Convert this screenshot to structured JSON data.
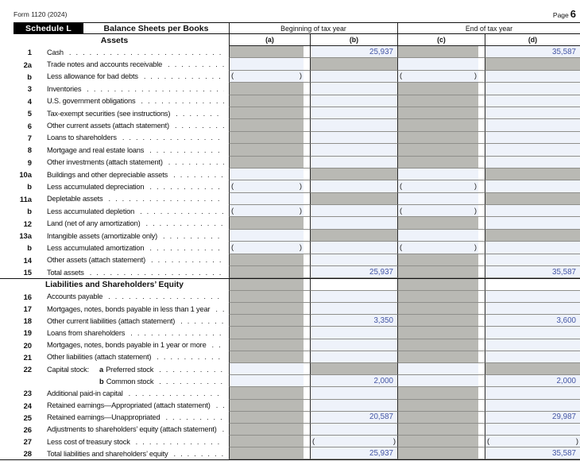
{
  "page": {
    "form_id": "Form 1120 (2024)",
    "page_label": "Page",
    "page_number": "6"
  },
  "header": {
    "schedule_badge": "Schedule L",
    "title": "Balance Sheets per Books",
    "group_beginning": "Beginning of tax year",
    "group_end": "End of tax year",
    "columns": [
      "(a)",
      "(b)",
      "(c)",
      "(d)"
    ]
  },
  "glyphs": {
    "paren_open": "(",
    "paren_close": ")",
    "leader_dot": "."
  },
  "sections": [
    {
      "title": "Assets",
      "rows": [
        {
          "num": "1",
          "label": "Cash",
          "a": "s",
          "b": "e",
          "c": "s",
          "d": "e",
          "vb": "25,937",
          "vd": "35,587"
        },
        {
          "num": "2a",
          "label": "Trade notes and accounts receivable",
          "a": "e",
          "b": "s",
          "c": "e",
          "d": "s"
        },
        {
          "num": "b",
          "label": "Less allowance for bad debts",
          "a": "p",
          "b": "e",
          "c": "p",
          "d": "e"
        },
        {
          "num": "3",
          "label": "Inventories",
          "a": "s",
          "b": "e",
          "c": "s",
          "d": "e"
        },
        {
          "num": "4",
          "label": "U.S. government obligations",
          "a": "s",
          "b": "e",
          "c": "s",
          "d": "e"
        },
        {
          "num": "5",
          "label": "Tax-exempt securities (see instructions)",
          "a": "s",
          "b": "e",
          "c": "s",
          "d": "e"
        },
        {
          "num": "6",
          "label": "Other current assets (attach statement)",
          "a": "s",
          "b": "e",
          "c": "s",
          "d": "e"
        },
        {
          "num": "7",
          "label": "Loans to shareholders",
          "a": "s",
          "b": "e",
          "c": "s",
          "d": "e"
        },
        {
          "num": "8",
          "label": "Mortgage and real estate loans",
          "a": "s",
          "b": "e",
          "c": "s",
          "d": "e"
        },
        {
          "num": "9",
          "label": "Other investments (attach statement)",
          "a": "s",
          "b": "e",
          "c": "s",
          "d": "e"
        },
        {
          "num": "10a",
          "label": "Buildings and other depreciable assets",
          "a": "e",
          "b": "s",
          "c": "e",
          "d": "s"
        },
        {
          "num": "b",
          "label": "Less accumulated depreciation",
          "a": "p",
          "b": "e",
          "c": "p",
          "d": "e"
        },
        {
          "num": "11a",
          "label": "Depletable assets",
          "a": "e",
          "b": "s",
          "c": "e",
          "d": "s"
        },
        {
          "num": "b",
          "label": "Less accumulated depletion",
          "a": "p",
          "b": "e",
          "c": "p",
          "d": "e"
        },
        {
          "num": "12",
          "label": "Land (net of any amortization)",
          "a": "s",
          "b": "e",
          "c": "s",
          "d": "e"
        },
        {
          "num": "13a",
          "label": "Intangible assets (amortizable only)",
          "a": "e",
          "b": "s",
          "c": "e",
          "d": "s"
        },
        {
          "num": "b",
          "label": "Less accumulated amortization",
          "a": "p",
          "b": "e",
          "c": "p",
          "d": "e"
        },
        {
          "num": "14",
          "label": "Other assets (attach statement)",
          "a": "s",
          "b": "e",
          "c": "s",
          "d": "e"
        },
        {
          "num": "15",
          "label": "Total assets",
          "a": "s",
          "b": "e",
          "c": "s",
          "d": "e",
          "vb": "25,937",
          "vd": "35,587"
        }
      ]
    },
    {
      "title": "Liabilities and Shareholders’ Equity",
      "header_cells": {
        "a": "s",
        "b": "w",
        "c": "s",
        "d": "w"
      },
      "rows": [
        {
          "num": "16",
          "label": "Accounts payable",
          "a": "s",
          "b": "e",
          "c": "s",
          "d": "e"
        },
        {
          "num": "17",
          "label": "Mortgages, notes, bonds payable in less than 1 year",
          "a": "s",
          "b": "e",
          "c": "s",
          "d": "e"
        },
        {
          "num": "18",
          "label": "Other current liabilities (attach statement)",
          "a": "s",
          "b": "e",
          "c": "s",
          "d": "e",
          "vb": "3,350",
          "vd": "3,600"
        },
        {
          "num": "19",
          "label": "Loans from shareholders",
          "a": "s",
          "b": "e",
          "c": "s",
          "d": "e"
        },
        {
          "num": "20",
          "label": "Mortgages, notes, bonds payable in 1 year or more",
          "a": "s",
          "b": "e",
          "c": "s",
          "d": "e"
        },
        {
          "num": "21",
          "label": "Other liabilities (attach statement)",
          "a": "s",
          "b": "e",
          "c": "s",
          "d": "e"
        },
        {
          "num": "22",
          "prefix": "Capital stock:",
          "sub": "a",
          "label": "Preferred stock",
          "a": "e",
          "b": "s",
          "c": "e",
          "d": "s"
        },
        {
          "num": "",
          "prefix": "",
          "sub": "b",
          "label": "Common stock",
          "a": "e",
          "b": "e",
          "c": "e",
          "d": "e",
          "vb": "2,000",
          "vd": "2,000"
        },
        {
          "num": "23",
          "label": "Additional paid-in capital",
          "a": "s",
          "b": "e",
          "c": "s",
          "d": "e"
        },
        {
          "num": "24",
          "label": "Retained earnings—Appropriated (attach statement)",
          "a": "s",
          "b": "e",
          "c": "s",
          "d": "e"
        },
        {
          "num": "25",
          "label": "Retained earnings—Unappropriated",
          "a": "s",
          "b": "e",
          "c": "s",
          "d": "e",
          "vb": "20,587",
          "vd": "29,987"
        },
        {
          "num": "26",
          "label": "Adjustments to shareholders’ equity (attach statement)",
          "a": "s",
          "b": "e",
          "c": "s",
          "d": "e"
        },
        {
          "num": "27",
          "label": "Less cost of treasury stock",
          "a": "s",
          "b": "p",
          "c": "s",
          "d": "p"
        },
        {
          "num": "28",
          "label": "Total liabilities and shareholders’ equity",
          "a": "s",
          "b": "e",
          "c": "s",
          "d": "e",
          "vb": "25,937",
          "vd": "35,587"
        }
      ]
    }
  ],
  "colors": {
    "shaded_cell": "#b9b9b4",
    "entry_cell": "#eef2fa",
    "value_text": "#4456a5",
    "header_bar": "#000000"
  }
}
